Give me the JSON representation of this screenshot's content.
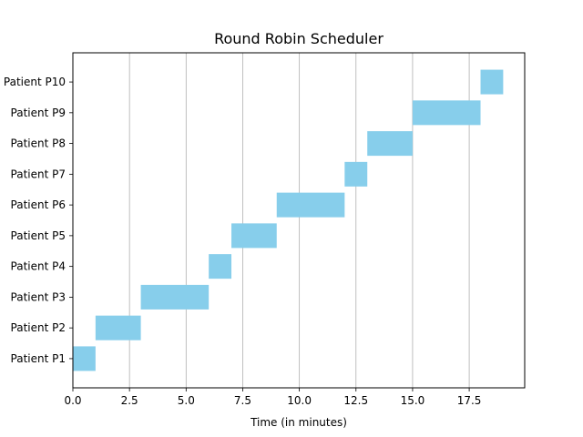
{
  "chart_data": {
    "type": "bar",
    "orientation": "horizontal",
    "title": "Round Robin Scheduler",
    "xlabel": "Time (in minutes)",
    "ylabel": "",
    "xlim": [
      0,
      19.95
    ],
    "xticks": [
      0,
      2.5,
      5,
      7.5,
      10,
      12.5,
      15,
      17.5
    ],
    "xtick_labels": [
      "0.0",
      "2.5",
      "5.0",
      "7.5",
      "10.0",
      "12.5",
      "15.0",
      "17.5"
    ],
    "grid": "vertical",
    "bar_color": "#87ceeb",
    "categories": [
      "Patient P1",
      "Patient P2",
      "Patient P3",
      "Patient P4",
      "Patient P5",
      "Patient P6",
      "Patient P7",
      "Patient P8",
      "Patient P9",
      "Patient P10"
    ],
    "tasks": [
      {
        "label": "Patient P1",
        "start": 0,
        "duration": 1
      },
      {
        "label": "Patient P2",
        "start": 1,
        "duration": 2
      },
      {
        "label": "Patient P3",
        "start": 3,
        "duration": 3
      },
      {
        "label": "Patient P4",
        "start": 6,
        "duration": 1
      },
      {
        "label": "Patient P5",
        "start": 7,
        "duration": 2
      },
      {
        "label": "Patient P6",
        "start": 9,
        "duration": 3
      },
      {
        "label": "Patient P7",
        "start": 12,
        "duration": 1
      },
      {
        "label": "Patient P8",
        "start": 13,
        "duration": 2
      },
      {
        "label": "Patient P9",
        "start": 15,
        "duration": 3
      },
      {
        "label": "Patient P10",
        "start": 18,
        "duration": 1
      }
    ]
  }
}
